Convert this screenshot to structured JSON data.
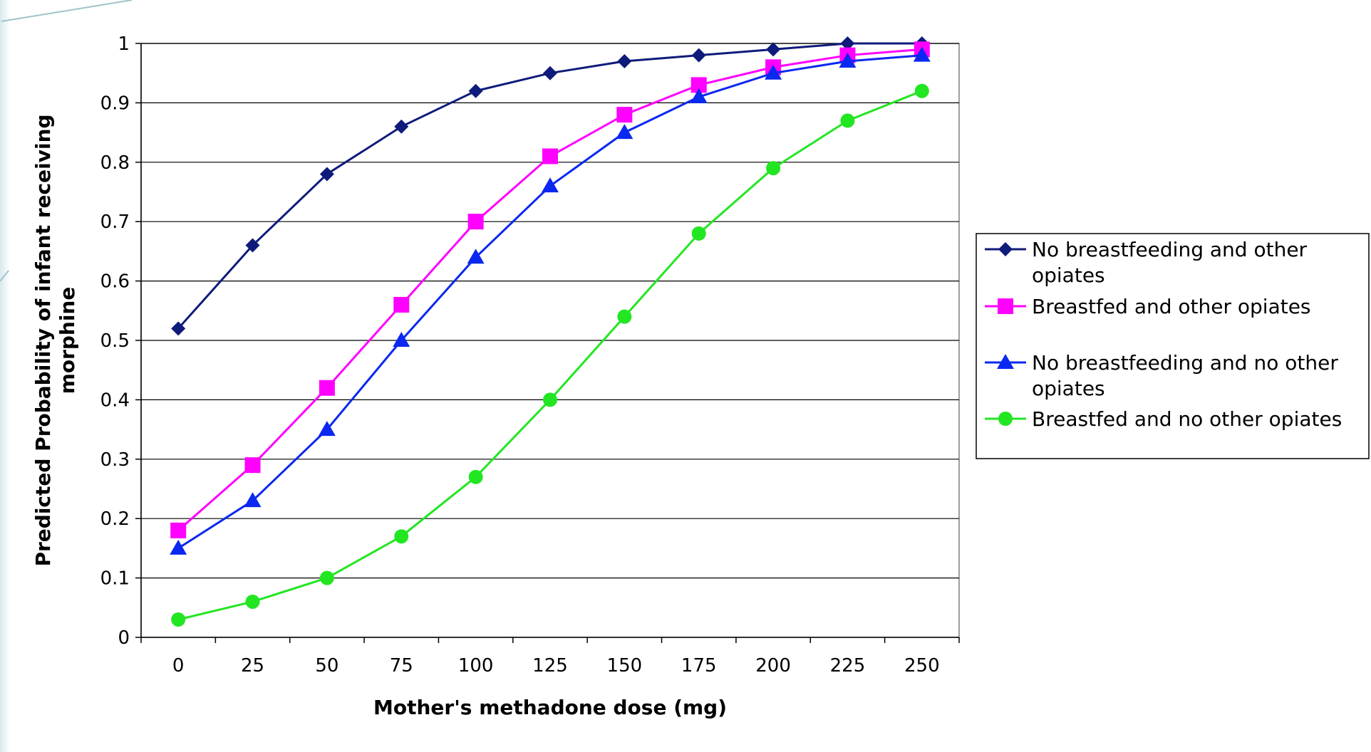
{
  "chart_data": {
    "type": "line",
    "title": "",
    "xlabel": "Mother's methadone dose (mg)",
    "ylabel_lines": [
      "Predicted Probability of infant receiving",
      "morphine"
    ],
    "x": [
      0,
      25,
      50,
      75,
      100,
      125,
      150,
      175,
      200,
      225,
      250
    ],
    "x_tick_labels": [
      "0",
      "25",
      "50",
      "75",
      "100",
      "125",
      "150",
      "175",
      "200",
      "225",
      "250"
    ],
    "y_tick_labels": [
      "0",
      "0.1",
      "0.2",
      "0.3",
      "0.4",
      "0.5",
      "0.6",
      "0.7",
      "0.8",
      "0.9",
      "1"
    ],
    "ylim": [
      0,
      1
    ],
    "grid": "horizontal",
    "legend_position": "right",
    "series": [
      {
        "name_lines": [
          "No breastfeeding and other",
          "opiates"
        ],
        "marker": "diamond",
        "color": "#0f1b7a",
        "values": [
          0.52,
          0.66,
          0.78,
          0.86,
          0.92,
          0.95,
          0.97,
          0.98,
          0.99,
          1.0,
          1.0
        ]
      },
      {
        "name_lines": [
          "Breastfed and other opiates"
        ],
        "marker": "square",
        "color": "#ff00ff",
        "values": [
          0.18,
          0.29,
          0.42,
          0.56,
          0.7,
          0.81,
          0.88,
          0.93,
          0.96,
          0.98,
          0.99
        ]
      },
      {
        "name_lines": [
          "No breastfeeding and no other",
          "opiates"
        ],
        "marker": "triangle",
        "color": "#0b28f0",
        "values": [
          0.15,
          0.23,
          0.35,
          0.5,
          0.64,
          0.76,
          0.85,
          0.91,
          0.95,
          0.97,
          0.98
        ]
      },
      {
        "name_lines": [
          "Breastfed and no other opiates"
        ],
        "marker": "circle",
        "color": "#22e622",
        "values": [
          0.03,
          0.06,
          0.1,
          0.17,
          0.27,
          0.4,
          0.54,
          0.68,
          0.79,
          0.87,
          0.92
        ]
      }
    ]
  }
}
